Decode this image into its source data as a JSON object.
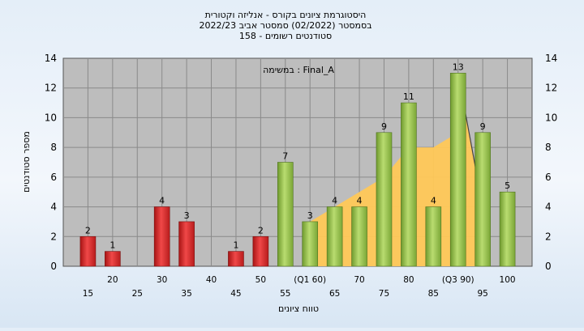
{
  "chart_data": {
    "type": "bar",
    "title": "היסטוגרמת ציונים בקורס - אנליזה וקטורית",
    "subtitle_line2": "בסמסטר  (02/2022)  סמסטר אביב 2022/23",
    "subtitle_line3": "סטודנטים רשומים - 158",
    "legend_text": "במשימה : Final_A",
    "xlabel": "טווח ציונים",
    "ylabel": "מספר סטודנטים",
    "ylim": [
      0,
      14
    ],
    "y_ticks": [
      "0",
      "2",
      "4",
      "6",
      "8",
      "10",
      "12",
      "14"
    ],
    "grid": true,
    "x_tick_labels": [
      "15",
      "20",
      "25",
      "30",
      "35",
      "40",
      "45",
      "50",
      "55",
      "(Q1 60)",
      "65",
      "70",
      "75",
      "80",
      "85",
      "(Q3 90)",
      "95",
      "100"
    ],
    "bins": [
      15,
      20,
      25,
      30,
      35,
      40,
      45,
      50,
      55,
      60,
      65,
      70,
      75,
      80,
      85,
      90,
      95,
      100
    ],
    "values": [
      2,
      1,
      0,
      4,
      3,
      0,
      1,
      2,
      7,
      3,
      4,
      4,
      9,
      11,
      4,
      13,
      9,
      5
    ],
    "bar_groups": [
      "fail",
      "fail",
      "fail",
      "fail",
      "fail",
      "fail",
      "fail",
      "fail",
      "pass",
      "pass",
      "pass",
      "pass",
      "pass",
      "pass",
      "pass",
      "pass",
      "pass",
      "pass"
    ],
    "band_values": [
      3,
      4,
      5,
      6,
      8,
      8,
      9,
      13,
      4
    ],
    "band_x": [
      60,
      65,
      70,
      75,
      80,
      85,
      90,
      90,
      95
    ],
    "colors": {
      "fail": "#dd2c2c",
      "pass": "#8fc04a",
      "band": "#ffc857",
      "plot_bg": "#bdbdbd",
      "grid": "#8a8a8a"
    }
  }
}
